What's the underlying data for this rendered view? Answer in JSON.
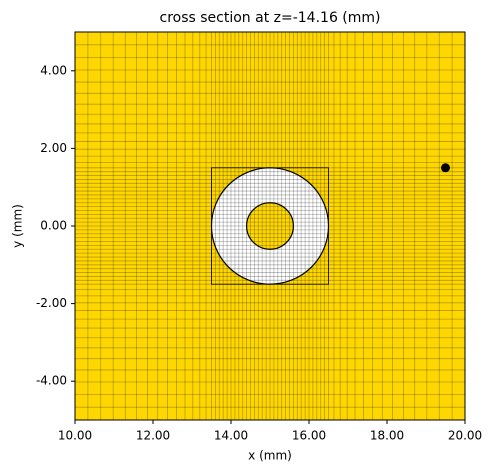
{
  "chart_data": {
    "type": "cross_section",
    "title": "cross section at z=-14.16 (mm)",
    "xlabel": "x (mm)",
    "ylabel": "y (mm)",
    "xlim": [
      10,
      20
    ],
    "ylim": [
      -5,
      5
    ],
    "xticks": [
      {
        "value": 10,
        "label": "10.00"
      },
      {
        "value": 12,
        "label": "12.00"
      },
      {
        "value": 14,
        "label": "14.00"
      },
      {
        "value": 16,
        "label": "16.00"
      },
      {
        "value": 18,
        "label": "18.00"
      },
      {
        "value": 20,
        "label": "20.00"
      }
    ],
    "yticks": [
      {
        "value": -4,
        "label": "-4.00"
      },
      {
        "value": -2,
        "label": "-2.00"
      },
      {
        "value": 0,
        "label": "0.00"
      },
      {
        "value": 2,
        "label": "2.00"
      },
      {
        "value": 4,
        "label": "4.00"
      }
    ],
    "background_color": "#ffd700",
    "mesh_x": [
      10.33,
      10.66,
      10.98,
      11.29,
      11.58,
      11.86,
      12.12,
      12.37,
      12.6,
      12.82,
      13.02,
      13.2,
      13.36,
      13.5,
      13.6,
      13.7,
      13.8,
      13.9,
      14.0,
      14.1,
      14.2,
      14.3,
      14.4,
      14.5,
      14.6,
      14.7,
      14.8,
      14.9,
      15.0,
      15.1,
      15.2,
      15.3,
      15.4,
      15.5,
      15.6,
      15.7,
      15.8,
      15.9,
      16.0,
      16.1,
      16.2,
      16.3,
      16.4,
      16.5,
      16.64,
      16.8,
      16.98,
      17.18,
      17.4,
      17.63,
      17.88,
      18.14,
      18.42,
      18.71,
      19.02,
      19.34,
      19.67
    ],
    "mesh_y": [
      -4.67,
      -4.34,
      -4.02,
      -3.71,
      -3.42,
      -3.14,
      -2.88,
      -2.63,
      -2.4,
      -2.18,
      -1.98,
      -1.8,
      -1.64,
      -1.5,
      -1.4,
      -1.3,
      -1.2,
      -1.1,
      -1.0,
      -0.9,
      -0.8,
      -0.7,
      -0.6,
      -0.5,
      -0.4,
      -0.3,
      -0.2,
      -0.1,
      0.0,
      0.1,
      0.2,
      0.3,
      0.4,
      0.5,
      0.6,
      0.7,
      0.8,
      0.9,
      1.0,
      1.1,
      1.2,
      1.3,
      1.4,
      1.5,
      1.64,
      1.8,
      1.98,
      2.18,
      2.4,
      2.63,
      2.88,
      3.14,
      3.42,
      3.71,
      4.02,
      4.34,
      4.67
    ],
    "box_x": [
      13.5,
      16.5
    ],
    "box_y": [
      -1.5,
      1.5
    ],
    "rings": [
      {
        "center": [
          15,
          0
        ],
        "radius": 1.5,
        "color": "#ffffff"
      },
      {
        "center": [
          15,
          0
        ],
        "radius": 0.6,
        "color": "#ffd700"
      }
    ],
    "point": {
      "x": 19.5,
      "y": 1.5,
      "color": "#000000"
    }
  }
}
